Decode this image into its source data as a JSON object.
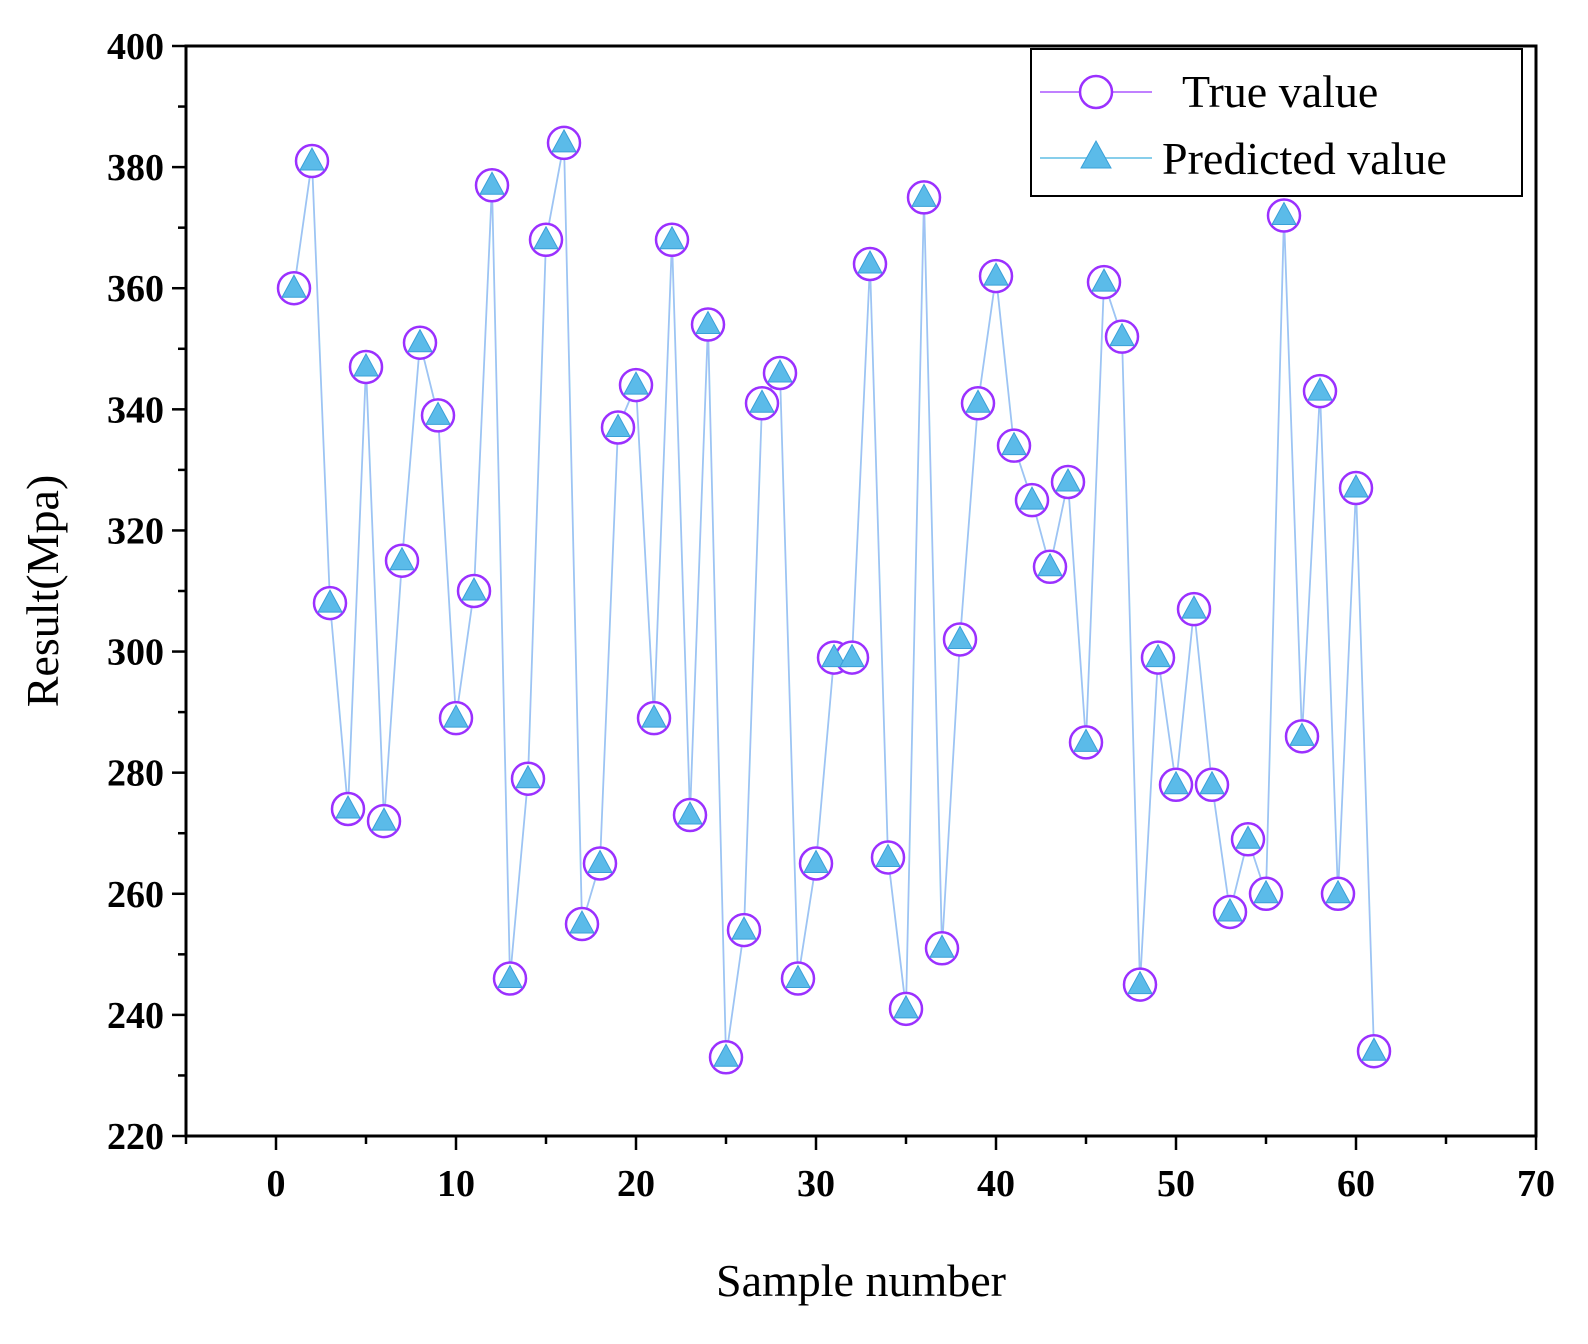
{
  "chart_data": {
    "type": "line",
    "title": "",
    "xlabel": "Sample number",
    "ylabel": "Result(Mpa)",
    "xlim": [
      -5,
      70
    ],
    "ylim": [
      220,
      400
    ],
    "x_major_ticks": [
      0,
      10,
      20,
      30,
      40,
      50,
      60,
      70
    ],
    "y_major_ticks": [
      220,
      240,
      260,
      280,
      300,
      320,
      340,
      360,
      380,
      400
    ],
    "x_tick_labels": [
      "0",
      "10",
      "20",
      "30",
      "40",
      "50",
      "60",
      "70"
    ],
    "y_tick_labels": [
      "220",
      "240",
      "260",
      "280",
      "300",
      "320",
      "340",
      "360",
      "380",
      "400"
    ],
    "legend_position": "top-right",
    "x": [
      1,
      2,
      3,
      4,
      5,
      6,
      7,
      8,
      9,
      10,
      11,
      12,
      13,
      14,
      15,
      16,
      17,
      18,
      19,
      20,
      21,
      22,
      23,
      24,
      25,
      26,
      27,
      28,
      29,
      30,
      31,
      32,
      33,
      34,
      35,
      36,
      37,
      38,
      39,
      40,
      41,
      42,
      43,
      44,
      45,
      46,
      47,
      48,
      49,
      50,
      51,
      52,
      53,
      54,
      55,
      56,
      57,
      58,
      59,
      60,
      61
    ],
    "series": [
      {
        "name": "True value",
        "marker": "open-circle",
        "color": "#9b30ff",
        "values": [
          360,
          381,
          308,
          274,
          347,
          272,
          315,
          351,
          339,
          289,
          310,
          377,
          246,
          279,
          368,
          384,
          255,
          265,
          337,
          344,
          289,
          368,
          273,
          354,
          233,
          254,
          341,
          346,
          246,
          265,
          299,
          299,
          364,
          266,
          241,
          375,
          251,
          302,
          341,
          362,
          334,
          325,
          314,
          328,
          285,
          361,
          352,
          245,
          299,
          278,
          307,
          278,
          257,
          269,
          260,
          372,
          286,
          343,
          260,
          327,
          234
        ]
      },
      {
        "name": "Predicted value",
        "marker": "filled-triangle",
        "color": "#87ceeb",
        "values": [
          360,
          381,
          308,
          274,
          347,
          272,
          315,
          351,
          339,
          289,
          310,
          377,
          246,
          279,
          368,
          384,
          255,
          265,
          337,
          344,
          289,
          368,
          273,
          354,
          233,
          254,
          341,
          346,
          246,
          265,
          299,
          299,
          364,
          266,
          241,
          375,
          251,
          302,
          341,
          362,
          334,
          325,
          314,
          328,
          285,
          361,
          352,
          245,
          299,
          278,
          307,
          278,
          257,
          269,
          260,
          372,
          286,
          343,
          260,
          327,
          234
        ]
      }
    ]
  }
}
